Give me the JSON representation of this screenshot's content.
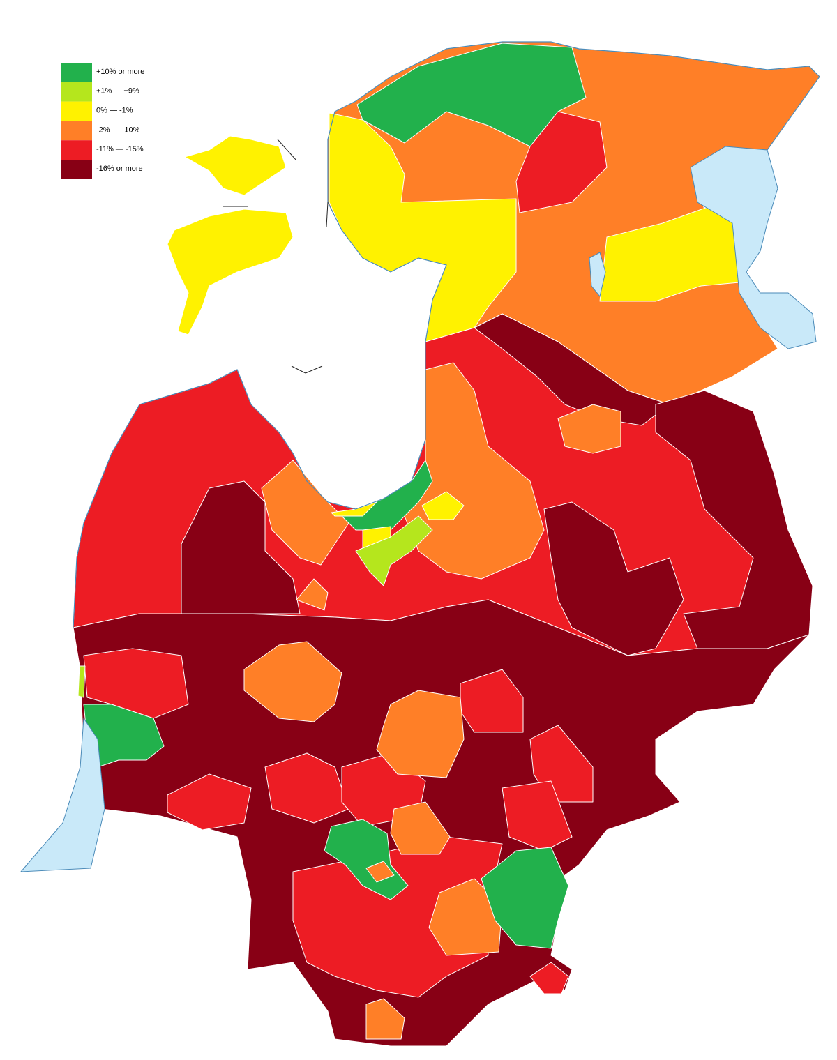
{
  "legend": [
    {
      "label": "+10% or more",
      "color": "#22b14c"
    },
    {
      "label": "+1% — +9%",
      "color": "#b5e61d"
    },
    {
      "label": "0% — -1%",
      "color": "#fff200"
    },
    {
      "label": "-2% — -10%",
      "color": "#ff7f27"
    },
    {
      "label": "-11% — -15%",
      "color": "#ed1c24"
    },
    {
      "label": "-16% or more",
      "color": "#880015"
    }
  ]
}
